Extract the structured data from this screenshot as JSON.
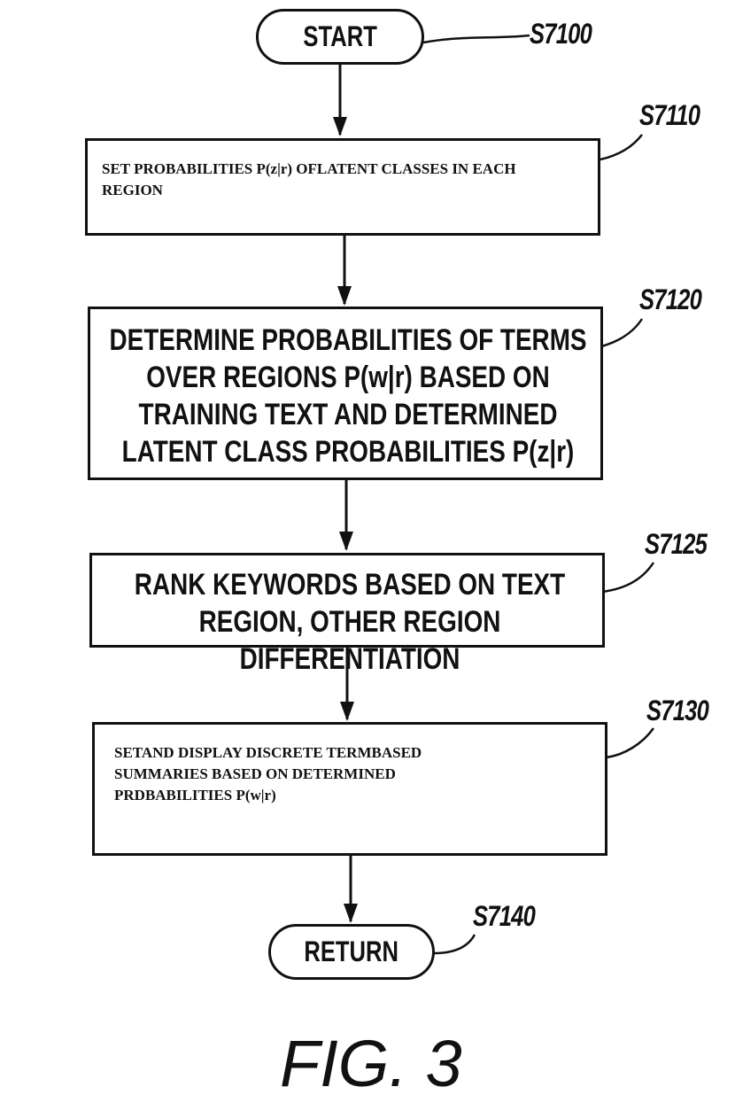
{
  "figure": {
    "title": "FIG. 3",
    "start": {
      "label": "START",
      "step_id": "S7100"
    },
    "steps": [
      {
        "id": "S7110",
        "text": "SET PROBABILITIES P(z|r) OFLATENT CLASSES IN EACH REGION"
      },
      {
        "id": "S7120",
        "text": "DETERMINE PROBABILITIES OF TERMS OVER REGIONS P(w|r) BASED ON TRAINING TEXT AND DETERMINED LATENT CLASS PROBABILITIES P(z|r)"
      },
      {
        "id": "S7125",
        "text": "RANK KEYWORDS BASED ON TEXT REGION, OTHER REGION DIFFERENTIATION"
      },
      {
        "id": "S7130",
        "text": "SETAND DISPLAY DISCRETE TERMBASED SUMMARIES BASED ON DETERMINED PRDBABILITIES P(w|r)"
      }
    ],
    "end": {
      "label": "RETURN",
      "step_id": "S7140"
    },
    "colors": {
      "ink": "#111111",
      "background": "#ffffff"
    }
  }
}
